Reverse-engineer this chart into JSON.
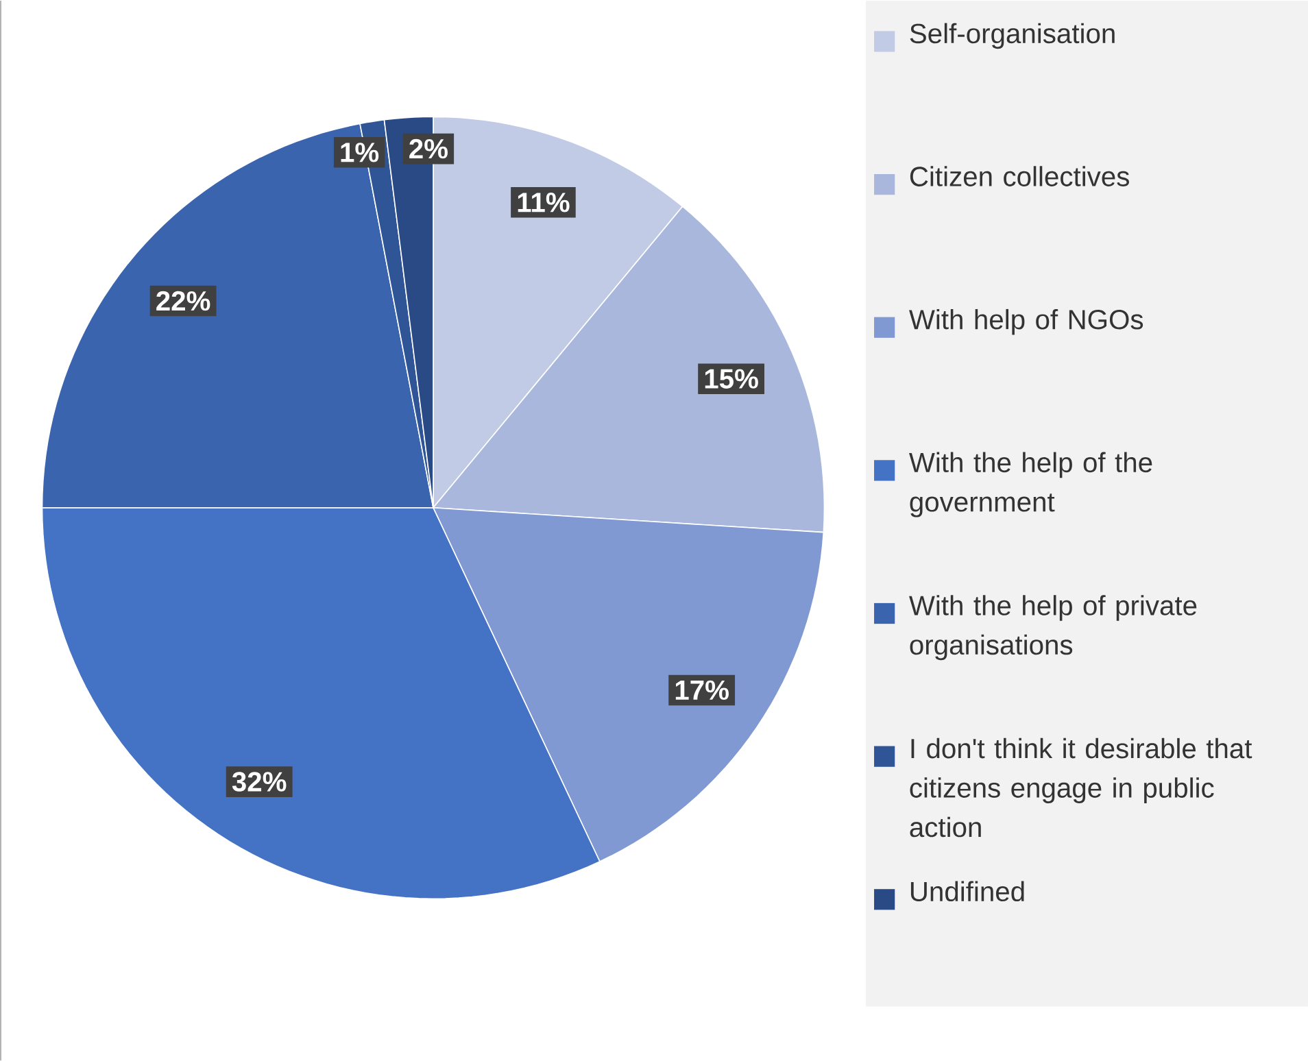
{
  "chart_data": {
    "type": "pie",
    "categories": [
      "Self-organisation",
      "Citizen collectives",
      "With help of NGOs",
      "With the help of the government",
      "With the help of private organisations",
      "I don't think it desirable that citizens engage in public action",
      "Undifined"
    ],
    "values": [
      11,
      15,
      17,
      32,
      22,
      1,
      2
    ],
    "value_labels": [
      "11%",
      "15%",
      "17%",
      "32%",
      "22%",
      "1%",
      "2%"
    ],
    "colors": [
      "#c1cbe6",
      "#a9b7dd",
      "#8199d3",
      "#4472c4",
      "#3b64ae",
      "#2f5597",
      "#2a4a86"
    ],
    "legend": "right"
  }
}
